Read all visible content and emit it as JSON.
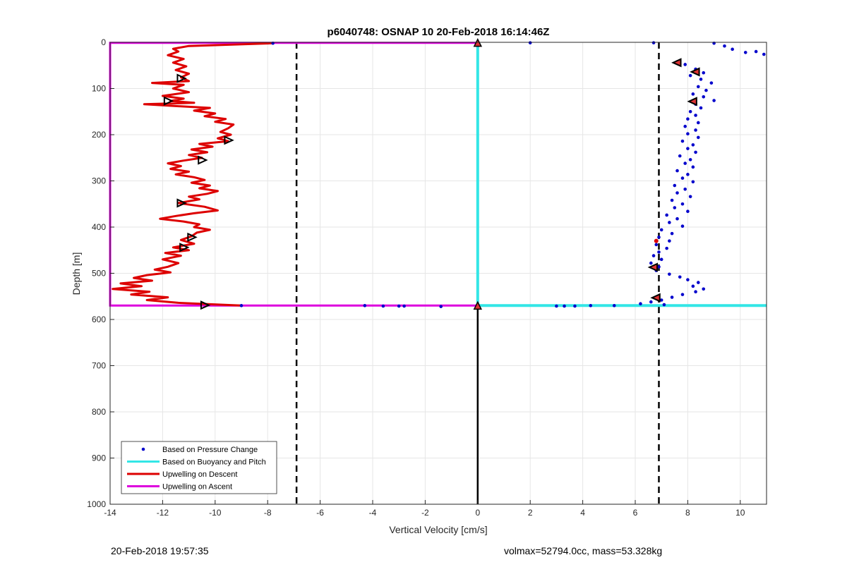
{
  "chart_data": {
    "type": "scatter",
    "title": "p6040748: OSNAP 10 20-Feb-2018 16:14:46Z",
    "xlabel": "Vertical Velocity [cm/s]",
    "ylabel": "Depth [m]",
    "xlim": [
      -14,
      11
    ],
    "ylim": [
      0,
      1000
    ],
    "y_reversed": true,
    "grid": true,
    "xticks": [
      -14,
      -12,
      -10,
      -8,
      -6,
      -4,
      -2,
      0,
      2,
      4,
      6,
      8,
      10
    ],
    "yticks": [
      0,
      100,
      200,
      300,
      400,
      500,
      600,
      700,
      800,
      900,
      1000
    ],
    "legend_position": "bottom-left",
    "legend": [
      {
        "label": "Based on Pressure Change",
        "color": "#0000cc",
        "style": "dot"
      },
      {
        "label": "Based on Buoyancy and Pitch",
        "color": "#33e6e6",
        "style": "line"
      },
      {
        "label": "Upwelling on Descent",
        "color": "#dd0000",
        "style": "line"
      },
      {
        "label": "Upwelling on Ascent",
        "color": "#dd00dd",
        "style": "line"
      }
    ],
    "vertical_reference_lines": [
      -6.9,
      6.9,
      0
    ],
    "max_depth": 570,
    "descent_profile": [
      [
        -7.8,
        2
      ],
      [
        -11,
        8
      ],
      [
        -11.6,
        14
      ],
      [
        -11.4,
        20
      ],
      [
        -11.8,
        28
      ],
      [
        -11.2,
        36
      ],
      [
        -11.6,
        44
      ],
      [
        -11.1,
        52
      ],
      [
        -11.5,
        60
      ],
      [
        -11.0,
        68
      ],
      [
        -11.3,
        76
      ],
      [
        -11.0,
        84
      ],
      [
        -12.4,
        88
      ],
      [
        -11.2,
        92
      ],
      [
        -11.6,
        100
      ],
      [
        -11.0,
        108
      ],
      [
        -12.0,
        116
      ],
      [
        -11.2,
        122
      ],
      [
        -11.7,
        127
      ],
      [
        -10.8,
        131
      ],
      [
        -12.7,
        134
      ],
      [
        -11.5,
        138
      ],
      [
        -10.2,
        142
      ],
      [
        -10.8,
        148
      ],
      [
        -10.0,
        154
      ],
      [
        -10.4,
        160
      ],
      [
        -9.6,
        166
      ],
      [
        -10.0,
        172
      ],
      [
        -9.3,
        178
      ],
      [
        -9.5,
        186
      ],
      [
        -9.8,
        194
      ],
      [
        -9.4,
        200
      ],
      [
        -9.9,
        208
      ],
      [
        -9.5,
        214
      ],
      [
        -10.6,
        220
      ],
      [
        -10.1,
        226
      ],
      [
        -10.9,
        232
      ],
      [
        -10.3,
        238
      ],
      [
        -11.0,
        244
      ],
      [
        -10.5,
        250
      ],
      [
        -11.2,
        256
      ],
      [
        -11.8,
        262
      ],
      [
        -11.3,
        268
      ],
      [
        -11.7,
        274
      ],
      [
        -11.0,
        280
      ],
      [
        -11.5,
        286
      ],
      [
        -10.8,
        292
      ],
      [
        -10.4,
        298
      ],
      [
        -10.9,
        304
      ],
      [
        -10.2,
        310
      ],
      [
        -10.6,
        316
      ],
      [
        -9.9,
        322
      ],
      [
        -10.3,
        328
      ],
      [
        -11.0,
        334
      ],
      [
        -10.6,
        340
      ],
      [
        -11.4,
        348
      ],
      [
        -10.4,
        356
      ],
      [
        -9.9,
        364
      ],
      [
        -10.8,
        370
      ],
      [
        -11.5,
        376
      ],
      [
        -12.1,
        382
      ],
      [
        -11.2,
        388
      ],
      [
        -10.6,
        394
      ],
      [
        -10.8,
        400
      ],
      [
        -10.2,
        406
      ],
      [
        -10.7,
        412
      ],
      [
        -10.9,
        420
      ],
      [
        -11.3,
        428
      ],
      [
        -10.8,
        436
      ],
      [
        -11.6,
        444
      ],
      [
        -11.0,
        450
      ],
      [
        -11.9,
        456
      ],
      [
        -11.3,
        462
      ],
      [
        -12.0,
        470
      ],
      [
        -11.4,
        478
      ],
      [
        -11.8,
        486
      ],
      [
        -12.3,
        492
      ],
      [
        -11.7,
        498
      ],
      [
        -12.6,
        504
      ],
      [
        -13.1,
        510
      ],
      [
        -12.4,
        516
      ],
      [
        -13.6,
        522
      ],
      [
        -12.8,
        528
      ],
      [
        -13.9,
        534
      ],
      [
        -12.5,
        540
      ],
      [
        -13.2,
        546
      ],
      [
        -11.8,
        552
      ],
      [
        -12.6,
        558
      ],
      [
        -11.4,
        564
      ],
      [
        -9.8,
        568
      ],
      [
        -9.0,
        570
      ]
    ],
    "descent_markers": [
      [
        -11.3,
        78
      ],
      [
        -11.8,
        127
      ],
      [
        -9.5,
        212
      ],
      [
        -10.5,
        255
      ],
      [
        -11.3,
        348
      ],
      [
        -10.9,
        422
      ],
      [
        -11.2,
        444
      ],
      [
        -10.4,
        569
      ]
    ],
    "ascent_profile": [
      [
        0,
        570
      ],
      [
        -14,
        570
      ],
      [
        -14,
        1
      ],
      [
        0,
        1
      ]
    ],
    "buoyancy_pitch_profile": [
      [
        0,
        0
      ],
      [
        0,
        570
      ],
      [
        11,
        570
      ]
    ],
    "pressure_change_points": [
      [
        9,
        2
      ],
      [
        9.4,
        8
      ],
      [
        9.7,
        15
      ],
      [
        10.2,
        22
      ],
      [
        10.6,
        20
      ],
      [
        10.9,
        26
      ],
      [
        7.6,
        42
      ],
      [
        7.9,
        48
      ],
      [
        8.3,
        58
      ],
      [
        8.6,
        66
      ],
      [
        8.1,
        72
      ],
      [
        8.5,
        80
      ],
      [
        8.9,
        88
      ],
      [
        8.4,
        96
      ],
      [
        8.7,
        104
      ],
      [
        8.2,
        112
      ],
      [
        8.6,
        118
      ],
      [
        9.0,
        126
      ],
      [
        8.3,
        134
      ],
      [
        8.5,
        142
      ],
      [
        8.1,
        150
      ],
      [
        8.3,
        158
      ],
      [
        8.0,
        166
      ],
      [
        8.4,
        174
      ],
      [
        7.9,
        182
      ],
      [
        8.3,
        190
      ],
      [
        8.0,
        198
      ],
      [
        8.4,
        206
      ],
      [
        7.8,
        214
      ],
      [
        8.2,
        222
      ],
      [
        8.0,
        230
      ],
      [
        8.3,
        238
      ],
      [
        7.7,
        246
      ],
      [
        8.1,
        254
      ],
      [
        7.9,
        262
      ],
      [
        8.2,
        270
      ],
      [
        7.6,
        278
      ],
      [
        8.0,
        286
      ],
      [
        7.8,
        294
      ],
      [
        8.2,
        302
      ],
      [
        7.5,
        310
      ],
      [
        7.9,
        318
      ],
      [
        7.6,
        326
      ],
      [
        8.1,
        334
      ],
      [
        7.4,
        342
      ],
      [
        7.8,
        350
      ],
      [
        7.5,
        358
      ],
      [
        8.0,
        366
      ],
      [
        7.2,
        374
      ],
      [
        7.6,
        382
      ],
      [
        7.3,
        390
      ],
      [
        7.8,
        398
      ],
      [
        7.0,
        406
      ],
      [
        7.4,
        414
      ],
      [
        6.9,
        422
      ],
      [
        7.3,
        430
      ],
      [
        6.8,
        438
      ],
      [
        7.2,
        446
      ],
      [
        6.9,
        454
      ],
      [
        6.7,
        462
      ],
      [
        7.0,
        470
      ],
      [
        6.6,
        478
      ],
      [
        6.9,
        486
      ],
      [
        6.8,
        494
      ],
      [
        7.3,
        502
      ],
      [
        7.7,
        508
      ],
      [
        8.0,
        514
      ],
      [
        8.4,
        520
      ],
      [
        8.2,
        528
      ],
      [
        8.6,
        534
      ],
      [
        8.3,
        540
      ],
      [
        7.8,
        546
      ],
      [
        7.4,
        552
      ],
      [
        7.0,
        558
      ],
      [
        6.6,
        562
      ],
      [
        6.2,
        566
      ],
      [
        7.1,
        568
      ],
      [
        -9.0,
        570
      ],
      [
        -4.3,
        570
      ],
      [
        -3.6,
        571
      ],
      [
        -3.0,
        571
      ],
      [
        -2.8,
        571
      ],
      [
        -1.4,
        572
      ],
      [
        3.0,
        571
      ],
      [
        3.3,
        571
      ],
      [
        3.7,
        571
      ],
      [
        4.3,
        570
      ],
      [
        5.2,
        570
      ],
      [
        -7.8,
        2
      ],
      [
        2.0,
        1
      ],
      [
        6.7,
        1
      ]
    ],
    "ascent_markers": [
      [
        7.6,
        44
      ],
      [
        8.3,
        64
      ],
      [
        8.2,
        128
      ],
      [
        6.7,
        487
      ],
      [
        6.8,
        553
      ]
    ],
    "ascent_triangle_markers": [
      [
        0,
        1
      ],
      [
        0,
        570
      ]
    ],
    "highlight_points": [
      [
        6.8,
        430
      ]
    ]
  },
  "footer": {
    "left": "20-Feb-2018 19:57:35",
    "right": "volmax=52794.0cc, mass=53.328kg"
  }
}
